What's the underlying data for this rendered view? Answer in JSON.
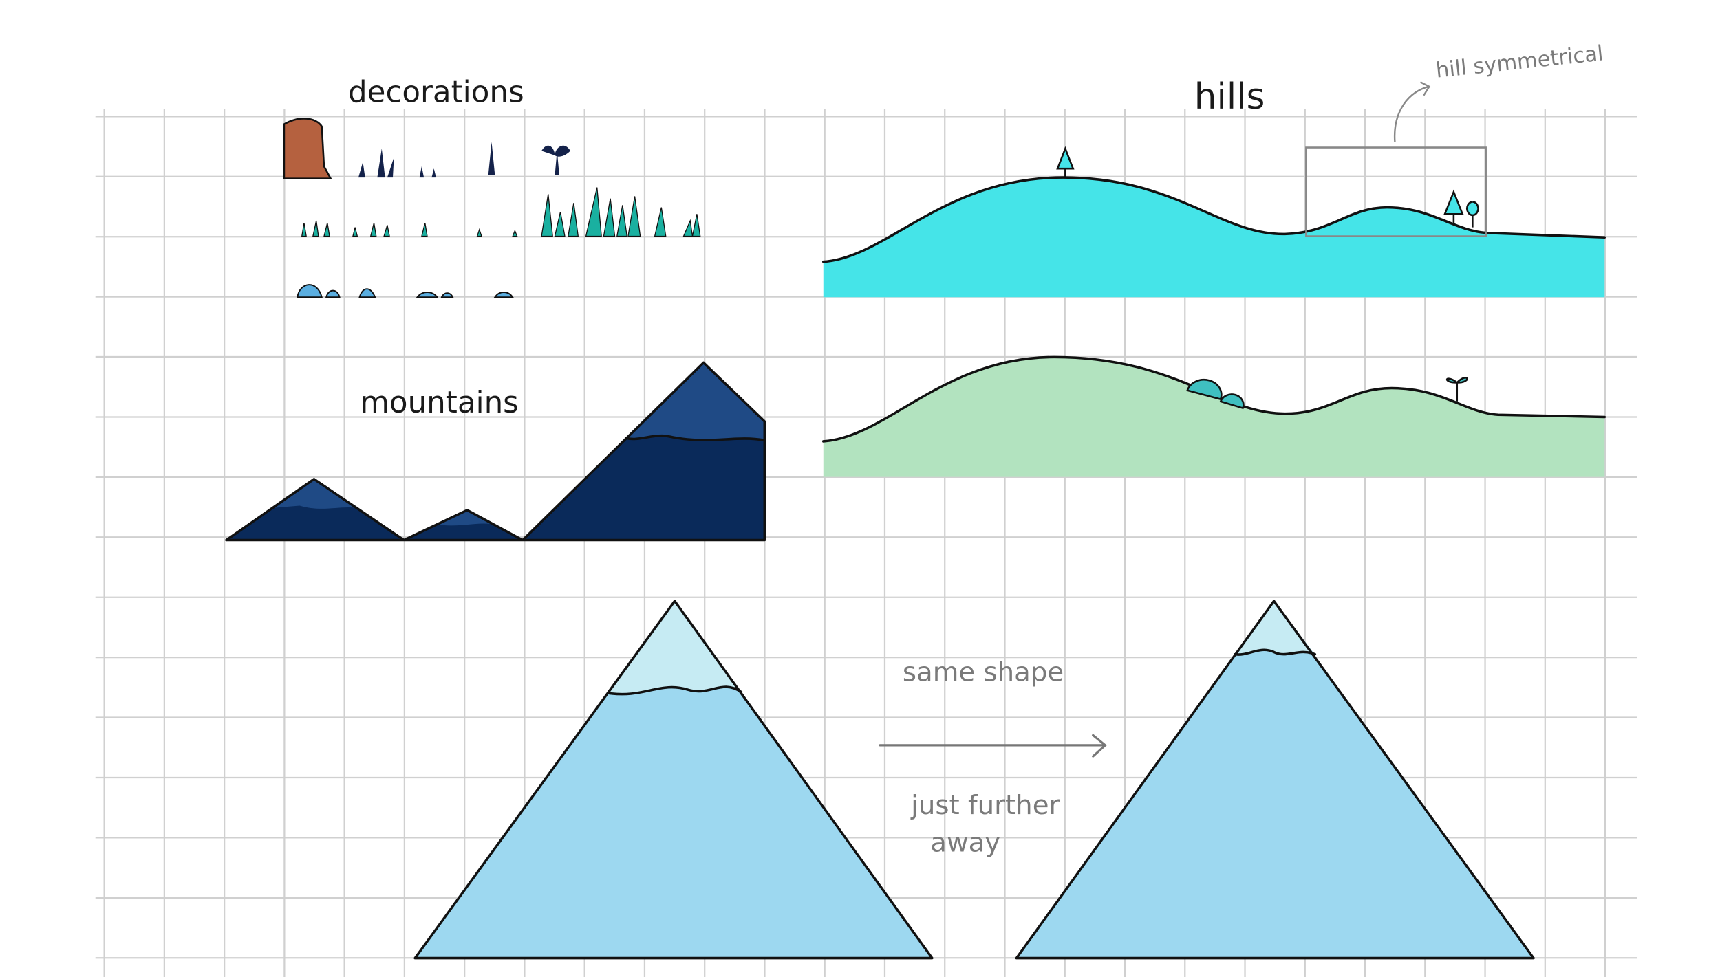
{
  "labels": {
    "decorations": "decorations",
    "hills": "hills",
    "hill_note": "hill symmetrical",
    "mountains": "mountains",
    "same_shape": "same shape",
    "further_line1": "just further",
    "further_line2": "away"
  }
}
